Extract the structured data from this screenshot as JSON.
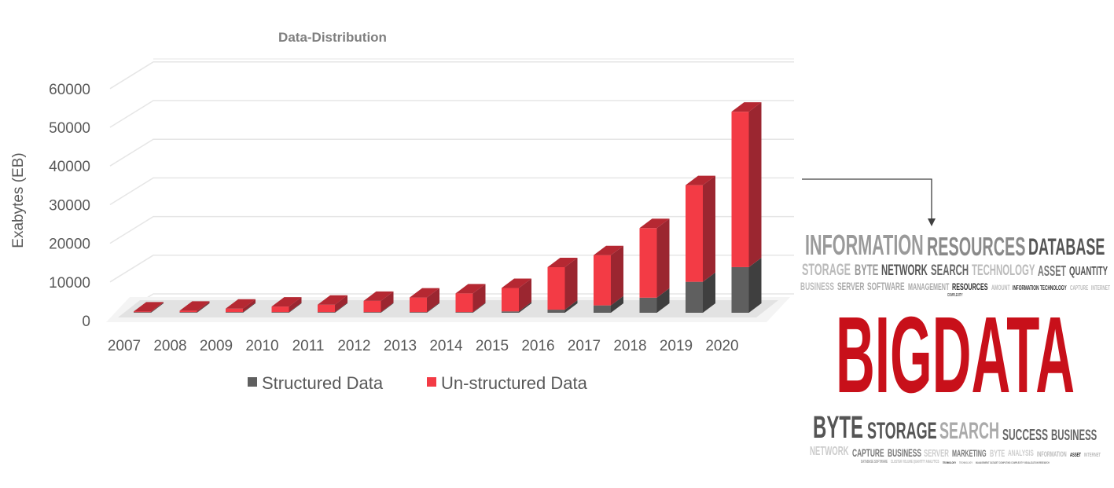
{
  "chart_data": {
    "type": "bar",
    "stacked": true,
    "three_d": true,
    "title": "Data-Distribution",
    "xlabel": "",
    "ylabel": "Exabytes (EB)",
    "ylim": [
      0,
      60000
    ],
    "yticks": [
      "0",
      "10000",
      "20000",
      "30000",
      "40000",
      "50000",
      "60000"
    ],
    "grid": true,
    "legend_position": "bottom",
    "categories": [
      "2007",
      "2008",
      "2009",
      "2010",
      "2011",
      "2012",
      "2013",
      "2014",
      "2015",
      "2016",
      "2017",
      "2018",
      "2019",
      "2020"
    ],
    "series": [
      {
        "name": "Structured Data",
        "color": "#5f5f5f",
        "values": [
          20,
          30,
          50,
          60,
          80,
          100,
          120,
          150,
          350,
          800,
          1900,
          3900,
          8000,
          11800
        ]
      },
      {
        "name": "Un-structured Data",
        "color": "#f33b45",
        "values": [
          180,
          370,
          900,
          1440,
          1920,
          2900,
          3780,
          4850,
          6050,
          11000,
          13000,
          18000,
          25000,
          40200
        ]
      }
    ]
  },
  "word_cloud": {
    "headline": "BIGDATA",
    "headline_color": "#c8101a",
    "words": [
      "DATABASE",
      "INFORMATION",
      "RESOURCES",
      "STORAGE",
      "ASSET",
      "MANAGEMENT",
      "INFORMATION TECHNOLOGY",
      "BUSINESS",
      "QUANTITY",
      "BYTE",
      "NETWORK",
      "SEARCH",
      "TECHNOLOGY",
      "SERVER",
      "RESOURCES",
      "SOFTWARE",
      "AMOUNT",
      "CAPTURE",
      "INTERNET",
      "COMPLEXITY",
      "NETWORK",
      "CAPTURE",
      "STORAGE",
      "SEARCH",
      "BUSINESS",
      "SUCCESS",
      "INFORMATION",
      "BYTE",
      "BUSINESS",
      "ASSET",
      "ANALYSIS",
      "MARKETING",
      "BYTE",
      "SERVER",
      "INTERNET",
      "TECHNOLOGY",
      "DATABASE SOFTWARE",
      "TECHNOLOGY",
      "CLUSTER VOLUME QUANTITY ANALYTICS",
      "MANAGEMENT DATASET COMPUTING COMPLEXITY VISUALIZATION RESEARCH"
    ]
  }
}
